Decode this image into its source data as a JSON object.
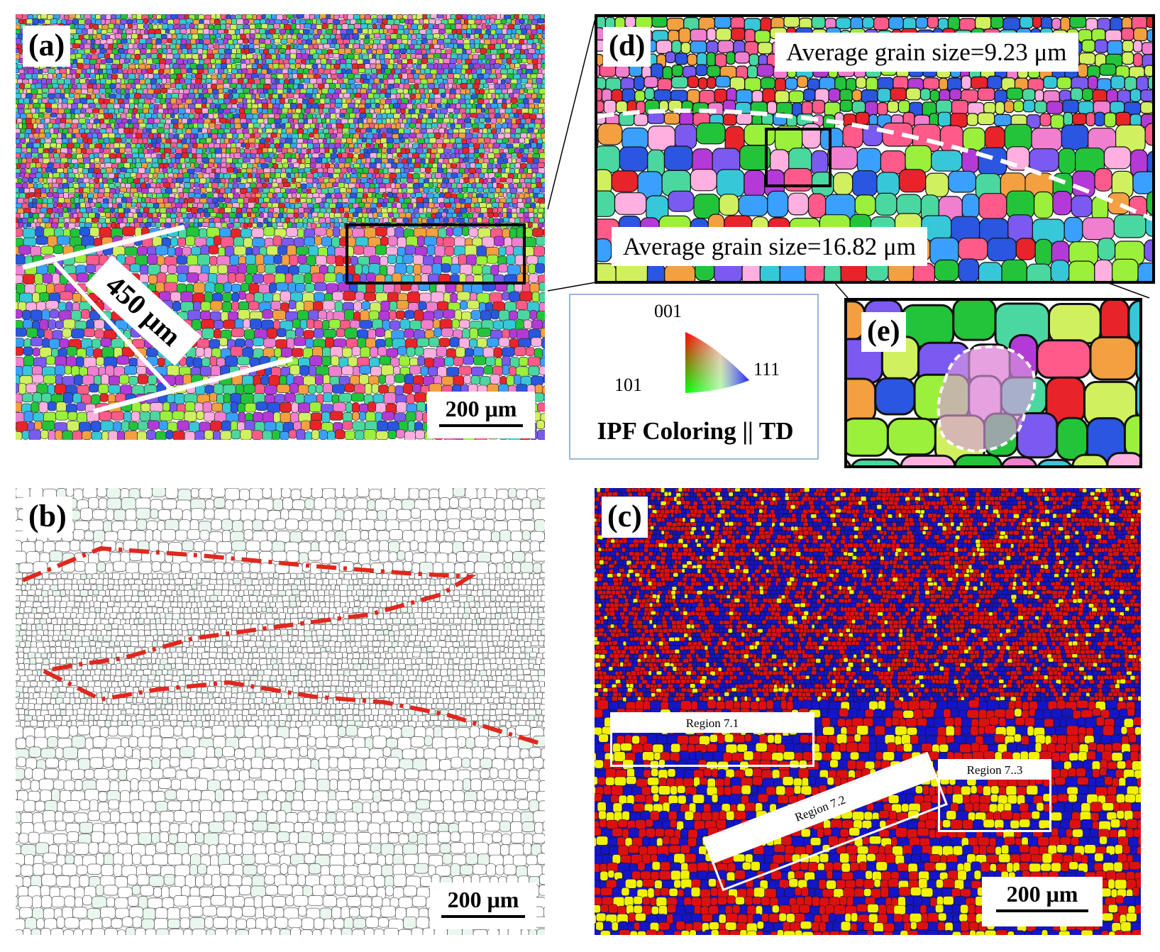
{
  "panels": {
    "a": {
      "label": "(a)",
      "scale_bar": "200 μm",
      "width_annotation": "450 μm"
    },
    "b": {
      "label": "(b)",
      "scale_bar": "200 μm"
    },
    "c": {
      "label": "(c)",
      "scale_bar": "200 μm",
      "regions": [
        "Region 7.1",
        "Region 7.2",
        "Region 7..3"
      ]
    },
    "d": {
      "label": "(d)",
      "avg_top": "Average grain size=9.23 μm",
      "avg_bottom": "Average grain size=16.82 μm"
    },
    "e": {
      "label": "(e)"
    }
  },
  "legend": {
    "corner_001": "001",
    "corner_101": "101",
    "corner_111": "111",
    "title": "IPF Coloring || TD"
  },
  "colors": {
    "ipf_grains": [
      "#e8242a",
      "#23c43a",
      "#2a56e0",
      "#b33ad6",
      "#36c8d8",
      "#f07fd0",
      "#9af03a",
      "#f4a040",
      "#7a5af0",
      "#4ad8a0",
      "#ff5a8a",
      "#3aa0ff",
      "#d0f060",
      "#ffb0e0"
    ],
    "c_map": [
      "#dd1010",
      "#1515c8",
      "#f2f200"
    ],
    "boundary_green": "#2ecc71",
    "boundary_gray": "#555555",
    "dash_red": "#e0281e"
  }
}
